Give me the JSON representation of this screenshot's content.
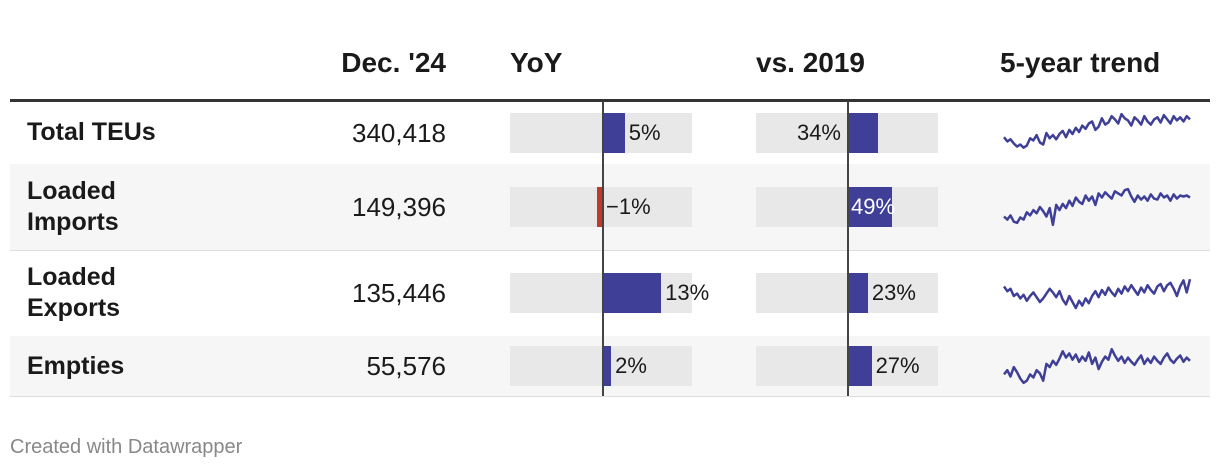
{
  "colors": {
    "positive": "#3f3f97",
    "negative": "#c0392b",
    "track": "#e8e8e8"
  },
  "chart_data": {
    "type": "table",
    "columns": [
      "",
      "Dec. '24",
      "YoY",
      "vs. 2019",
      "5-year trend"
    ],
    "yoy_range": [
      -5,
      5
    ],
    "vs2019_range": [
      -5,
      5
    ],
    "rows": [
      {
        "label": "Total TEUs",
        "value": "340,418",
        "yoy": 5,
        "yoy_label": "5%",
        "vs2019": 34,
        "vs2019_label": "34%",
        "trend": [
          5.6,
          5.2,
          5.4,
          5.0,
          4.7,
          4.9,
          4.6,
          4.8,
          5.5,
          5.3,
          5.8,
          5.1,
          4.9,
          6.0,
          5.5,
          5.8,
          5.4,
          5.9,
          6.2,
          5.6,
          6.3,
          5.9,
          6.5,
          6.1,
          6.7,
          6.4,
          6.9,
          7.1,
          6.3,
          6.6,
          7.4,
          6.8,
          7.0,
          7.6,
          7.3,
          6.9,
          7.8,
          7.4,
          7.2,
          6.7,
          7.5,
          7.2,
          6.8,
          7.6,
          7.1,
          6.8,
          7.3,
          7.5,
          7.0,
          7.7,
          7.3,
          6.9,
          7.6,
          7.2,
          7.5,
          7.1,
          7.6,
          7.3
        ],
        "trend_range": [
          4,
          8
        ]
      },
      {
        "label": "Loaded Imports",
        "value": "149,396",
        "yoy": -1,
        "yoy_label": "−1%",
        "vs2019": 49,
        "vs2019_label": "49%",
        "trend": [
          2.6,
          2.3,
          2.7,
          2.1,
          2.0,
          2.5,
          2.3,
          3.0,
          2.7,
          3.2,
          2.9,
          3.5,
          3.1,
          2.6,
          3.4,
          1.8,
          3.7,
          3.2,
          3.8,
          3.4,
          4.1,
          3.6,
          4.4,
          4.0,
          3.8,
          4.6,
          4.1,
          4.5,
          3.7,
          4.8,
          4.4,
          4.9,
          4.6,
          4.3,
          5.0,
          4.8,
          4.6,
          5.1,
          5.2,
          4.5,
          4.0,
          4.6,
          4.2,
          4.5,
          4.1,
          4.7,
          4.3,
          4.2,
          4.8,
          4.4,
          4.6,
          4.1,
          4.7,
          4.3,
          4.6,
          4.5,
          4.6,
          4.4
        ],
        "trend_range": [
          1.5,
          5.5
        ]
      },
      {
        "label": "Loaded Exports",
        "value": "135,446",
        "yoy": 13,
        "yoy_label": "13%",
        "vs2019": 23,
        "vs2019_label": "23%",
        "trend": [
          5.8,
          5.4,
          5.6,
          5.0,
          5.2,
          4.8,
          5.1,
          4.6,
          5.0,
          5.3,
          4.9,
          4.5,
          4.8,
          5.2,
          5.6,
          5.3,
          4.9,
          5.4,
          4.7,
          4.3,
          5.0,
          4.5,
          4.0,
          4.6,
          4.2,
          4.8,
          4.4,
          5.0,
          5.4,
          4.9,
          5.5,
          5.1,
          5.7,
          5.3,
          5.0,
          5.6,
          5.2,
          5.8,
          5.4,
          5.9,
          5.5,
          5.1,
          5.7,
          5.3,
          5.9,
          5.5,
          5.2,
          5.8,
          6.0,
          5.4,
          5.9,
          6.1,
          5.6,
          5.0,
          5.8,
          6.3,
          5.3,
          6.4
        ],
        "trend_range": [
          3.5,
          7
        ]
      },
      {
        "label": "Empties",
        "value": "55,576",
        "yoy": 2,
        "yoy_label": "2%",
        "vs2019": 27,
        "vs2019_label": "27%",
        "trend": [
          2.2,
          2.6,
          2.0,
          2.9,
          2.4,
          1.8,
          1.4,
          1.6,
          2.2,
          1.9,
          2.6,
          2.3,
          1.6,
          3.2,
          2.9,
          3.5,
          3.1,
          3.7,
          4.4,
          3.8,
          4.2,
          3.6,
          4.1,
          3.4,
          3.9,
          3.5,
          4.3,
          3.2,
          3.8,
          2.7,
          3.4,
          3.9,
          3.6,
          4.6,
          4.0,
          3.5,
          3.9,
          3.3,
          3.8,
          3.4,
          3.1,
          3.6,
          4.0,
          3.2,
          3.7,
          3.3,
          3.9,
          3.5,
          3.2,
          3.8,
          4.2,
          3.6,
          3.3,
          3.7,
          4.0,
          3.4,
          3.8,
          3.5
        ],
        "trend_range": [
          1,
          5
        ]
      }
    ]
  },
  "footer": "Created with Datawrapper"
}
